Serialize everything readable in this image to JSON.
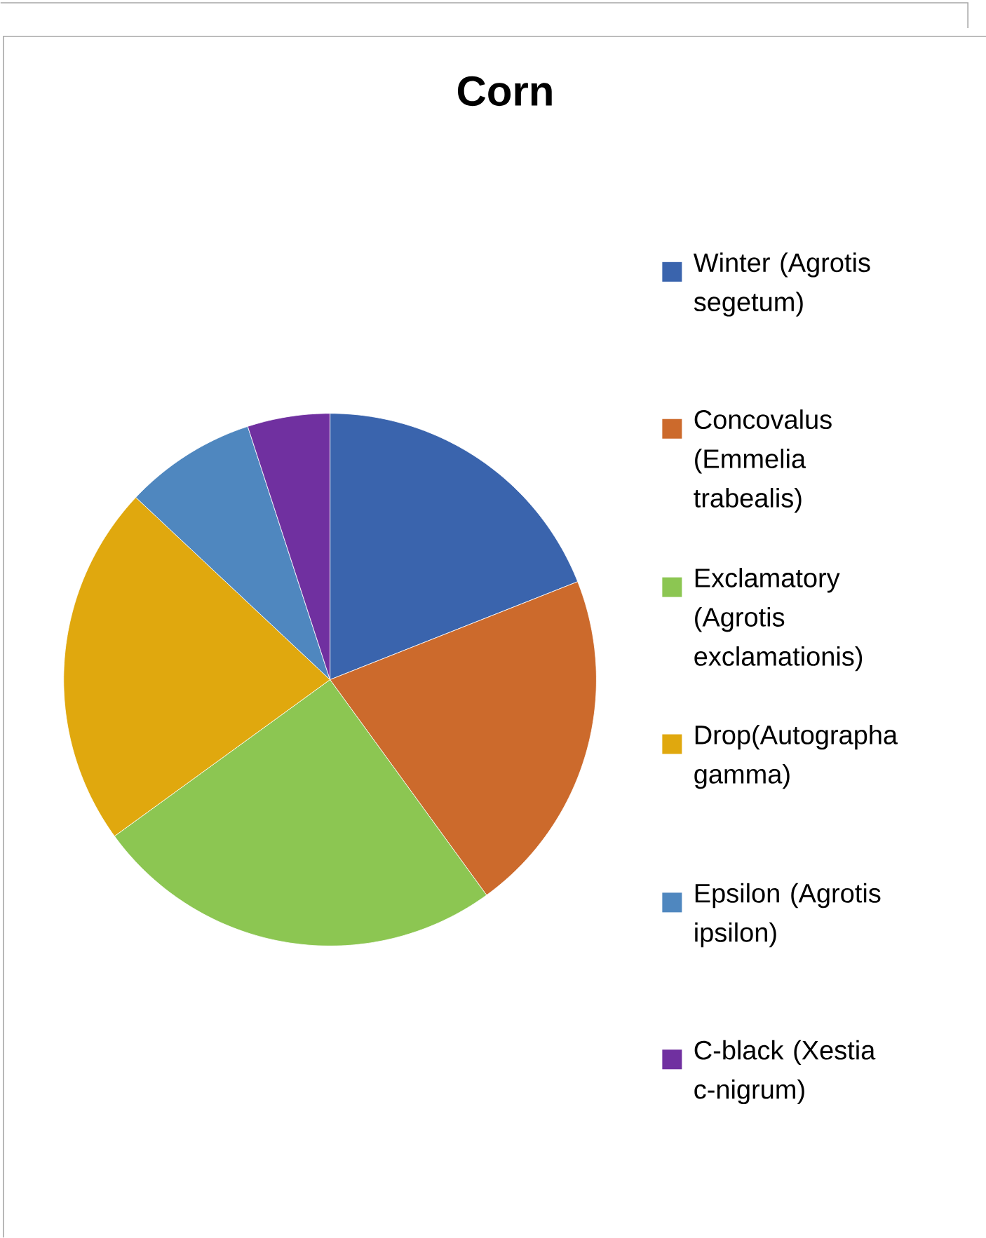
{
  "chart_data": {
    "type": "pie",
    "title": "Corn",
    "categories": [
      "Winter (Agrotis segetum)",
      "Concovalus (Emmelia trabealis)",
      "Exclamatory (Agrotis exclamationis)",
      "Drop(Autographa gamma)",
      "Epsilon (Agrotis ipsilon)",
      "C-black (Xestia c-nigrum)"
    ],
    "values": [
      19,
      21,
      25,
      22,
      8,
      5
    ],
    "colors": [
      "#3a64ad",
      "#cc6a2c",
      "#8cc652",
      "#e0a80e",
      "#4f87bf",
      "#7030a0"
    ],
    "legend": "right"
  }
}
